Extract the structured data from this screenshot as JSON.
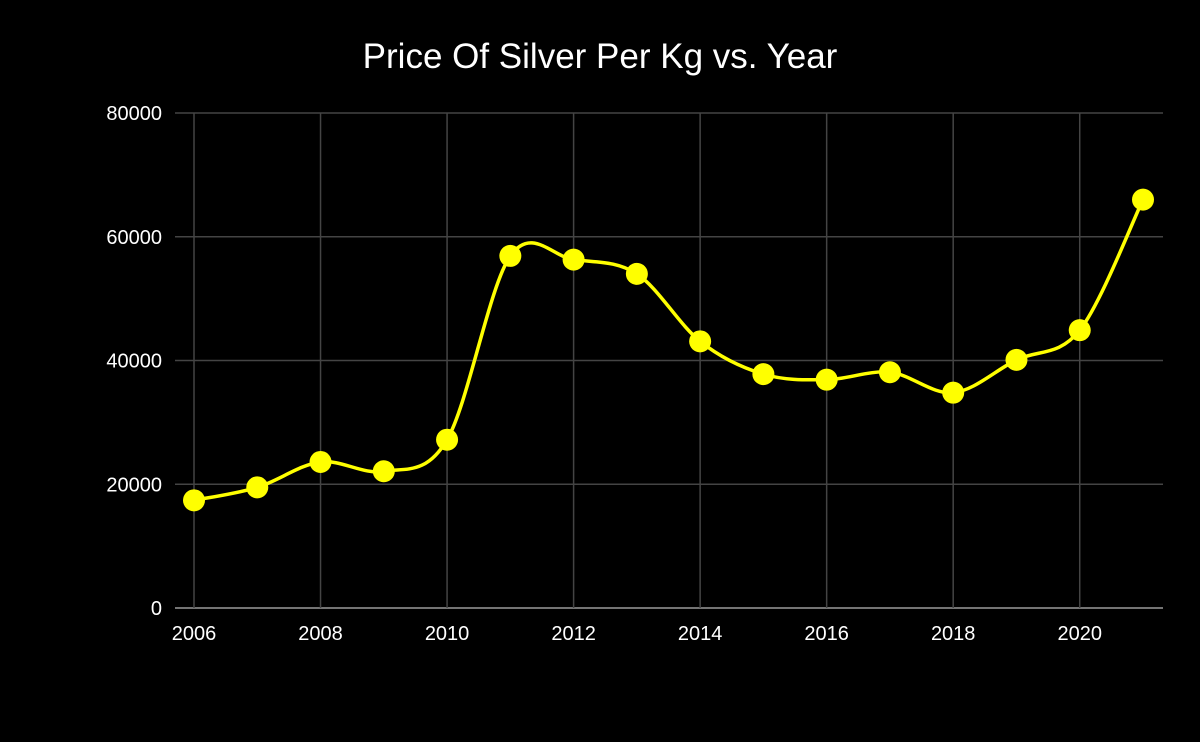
{
  "chart_data": {
    "type": "line",
    "title": "Price Of Silver Per Kg vs. Year",
    "xlabel": "",
    "ylabel": "",
    "x": [
      2006,
      2007,
      2008,
      2009,
      2010,
      2011,
      2012,
      2013,
      2014,
      2015,
      2016,
      2017,
      2018,
      2019,
      2020,
      2021
    ],
    "series": [
      {
        "values": [
          17400,
          19500,
          23600,
          22100,
          27200,
          56900,
          56300,
          54000,
          43100,
          37800,
          36900,
          38100,
          34800,
          40100,
          44900,
          66000
        ],
        "color": "#ffff00"
      }
    ],
    "xlim": [
      2006,
      2021
    ],
    "ylim": [
      0,
      80000
    ],
    "x_ticks": [
      "2006",
      "2008",
      "2010",
      "2012",
      "2014",
      "2016",
      "2018",
      "2020"
    ],
    "y_ticks": [
      "0",
      "20000",
      "40000",
      "60000",
      "80000"
    ],
    "grid": true,
    "smooth": true,
    "markers": true
  },
  "colors": {
    "background": "#000000",
    "text": "#ffffff",
    "grid": "#444444",
    "series": "#ffff00"
  }
}
